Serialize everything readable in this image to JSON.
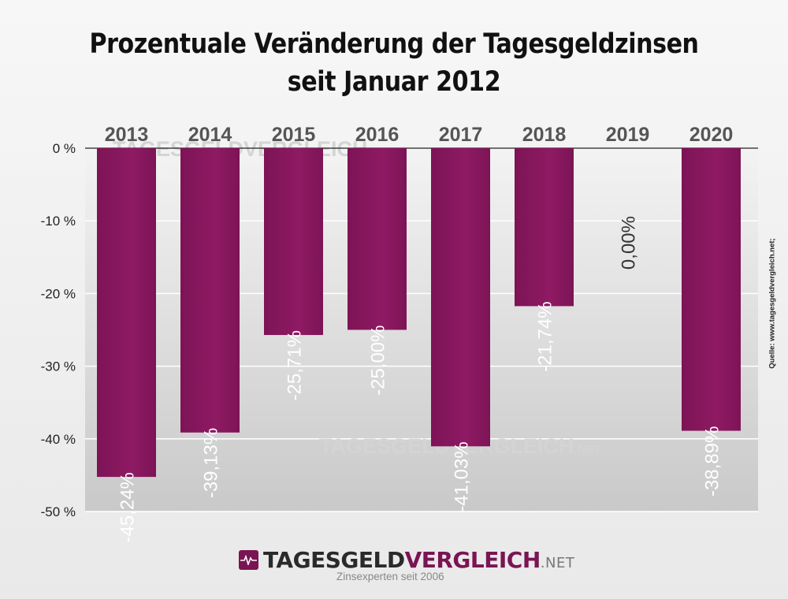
{
  "chart_data": {
    "type": "bar",
    "title": "Prozentuale Veränderung der Tagesgeldzinsen",
    "subtitle": "seit Januar 2012",
    "categories": [
      "2013",
      "2014",
      "2015",
      "2016",
      "2017",
      "2018",
      "2019",
      "2020"
    ],
    "values": [
      -45.24,
      -39.13,
      -25.71,
      -25.0,
      -41.03,
      -21.74,
      0.0,
      -38.89
    ],
    "data_labels": [
      "-45,24%",
      "-39,13%",
      "-25,71%",
      "-25,00%",
      "-41,03%",
      "-21,74%",
      "0,00%",
      "-38,89%"
    ],
    "ylim": [
      -50,
      0
    ],
    "y_ticks": [
      0,
      -10,
      -20,
      -30,
      -40,
      -50
    ],
    "y_tick_labels": [
      "0 %",
      "-10 %",
      "-20 %",
      "-30 %",
      "-40 %",
      "-50 %"
    ],
    "category_axis_position": "top",
    "grid": true,
    "bar_color": "#7d1456",
    "bar_highlight_color": "#8e1a63"
  },
  "watermark": {
    "brand": "TAGESGELDVERGLEICH",
    "suffix": ".NET"
  },
  "source_text": "Quelle: www.tagesgeldvergleich.net;",
  "logo": {
    "part1": "TAGESGELD",
    "part2": "VERGLEICH",
    "suffix": ".NET",
    "tagline": "Zinsexperten seit 2006"
  }
}
